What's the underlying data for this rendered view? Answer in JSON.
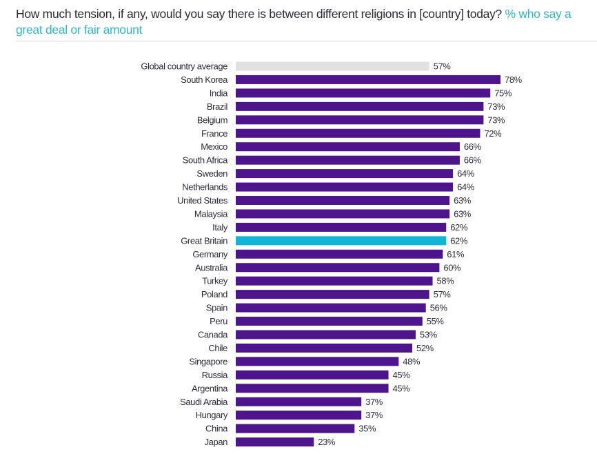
{
  "header": {
    "question": "How much tension, if any, would you say there is between different religions in [country] today?",
    "highlight": "% who say a great deal or fair amount"
  },
  "colors": {
    "default_bar": "#4e148c",
    "average_bar": "#e1e1e1",
    "highlight_bar": "#13b5d6",
    "highlight_label": "#2fb7cc",
    "text": "#2b2b3a"
  },
  "chart_data": {
    "type": "bar",
    "orientation": "horizontal",
    "title": "How much tension, if any, would you say there is between different religions in [country] today? % who say a great deal or fair amount",
    "xlabel": "",
    "ylabel": "",
    "xlim": [
      0,
      100
    ],
    "unit": "%",
    "grid": false,
    "categories": [
      "Global country average",
      "South Korea",
      "India",
      "Brazil",
      "Belgium",
      "France",
      "Mexico",
      "South Africa",
      "Sweden",
      "Netherlands",
      "United States",
      "Malaysia",
      "Italy",
      "Great Britain",
      "Germany",
      "Australia",
      "Turkey",
      "Poland",
      "Spain",
      "Peru",
      "Canada",
      "Chile",
      "Singapore",
      "Russia",
      "Argentina",
      "Saudi Arabia",
      "Hungary",
      "China",
      "Japan"
    ],
    "values": [
      57,
      78,
      75,
      73,
      73,
      72,
      66,
      66,
      64,
      64,
      63,
      63,
      62,
      62,
      61,
      60,
      58,
      57,
      56,
      55,
      53,
      52,
      48,
      45,
      45,
      37,
      37,
      35,
      23
    ],
    "value_labels": [
      "57%",
      "78%",
      "75%",
      "73%",
      "73%",
      "72%",
      "66%",
      "66%",
      "64%",
      "64%",
      "63%",
      "63%",
      "62%",
      "62%",
      "61%",
      "60%",
      "58%",
      "57%",
      "56%",
      "55%",
      "53%",
      "52%",
      "48%",
      "45%",
      "45%",
      "37%",
      "37%",
      "35%",
      "23%"
    ],
    "average_category": "Global country average",
    "highlight_category": "Great Britain"
  }
}
